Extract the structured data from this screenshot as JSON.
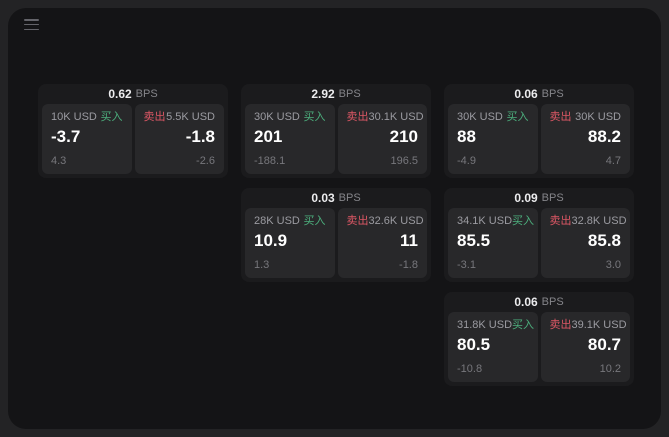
{
  "labels": {
    "bps": "BPS",
    "buy": "买入",
    "sell": "卖出"
  },
  "colors": {
    "buy": "#4caf7d",
    "sell": "#dd5765",
    "window_bg": "#141416",
    "card_bg": "#1b1b1d",
    "panel_bg": "#28282a"
  },
  "cards": [
    {
      "bps": "0.62",
      "buy": {
        "size": "10K USD",
        "price": "-3.7",
        "delta": "4.3"
      },
      "sell": {
        "size": "5.5K USD",
        "price": "-1.8",
        "delta": "-2.6"
      }
    },
    {
      "bps": "2.92",
      "buy": {
        "size": "30K USD",
        "price": "201",
        "delta": "-188.1"
      },
      "sell": {
        "size": "30.1K USD",
        "price": "210",
        "delta": "196.5"
      }
    },
    {
      "bps": "0.06",
      "buy": {
        "size": "30K USD",
        "price": "88",
        "delta": "-4.9"
      },
      "sell": {
        "size": "30K USD",
        "price": "88.2",
        "delta": "4.7"
      }
    },
    {
      "bps": "0.03",
      "buy": {
        "size": "28K USD",
        "price": "10.9",
        "delta": "1.3"
      },
      "sell": {
        "size": "32.6K USD",
        "price": "11",
        "delta": "-1.8"
      }
    },
    {
      "bps": "0.09",
      "buy": {
        "size": "34.1K USD",
        "price": "85.5",
        "delta": "-3.1"
      },
      "sell": {
        "size": "32.8K USD",
        "price": "85.8",
        "delta": "3.0"
      }
    },
    {
      "bps": "0.06",
      "buy": {
        "size": "31.8K USD",
        "price": "80.5",
        "delta": "-10.8"
      },
      "sell": {
        "size": "39.1K USD",
        "price": "80.7",
        "delta": "10.2"
      }
    }
  ]
}
